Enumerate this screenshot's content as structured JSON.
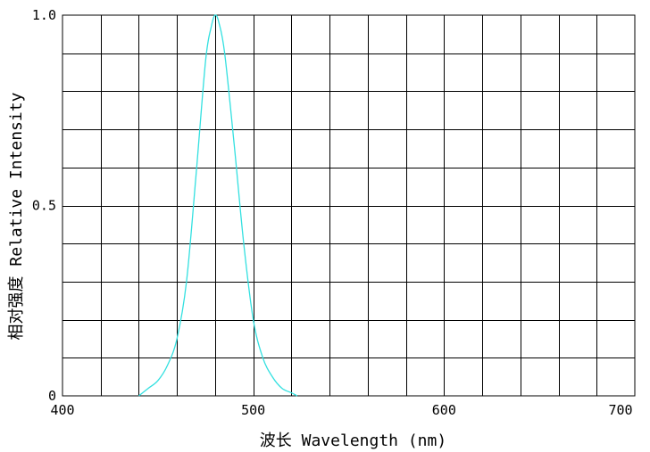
{
  "chart_data": {
    "type": "line",
    "xlabel": "波长  Wavelength (nm)",
    "ylabel": "相对强度  Relative Intensity",
    "xlim": [
      400,
      700
    ],
    "ylim": [
      0,
      1.0
    ],
    "x_ticks": [
      "400",
      "500",
      "600",
      "700"
    ],
    "y_ticks": [
      "0",
      "0.5",
      "1.0"
    ],
    "grid": true,
    "series": [
      {
        "color": "#33e0e0",
        "x": [
          440,
          445,
          450,
          455,
          460,
          465,
          470,
          475,
          478,
          480,
          482,
          485,
          490,
          495,
          500,
          505,
          510,
          515,
          520,
          523
        ],
        "y": [
          0.0,
          0.02,
          0.04,
          0.08,
          0.15,
          0.3,
          0.58,
          0.88,
          0.97,
          1.0,
          0.98,
          0.9,
          0.66,
          0.4,
          0.2,
          0.1,
          0.05,
          0.02,
          0.008,
          0.0
        ]
      }
    ]
  }
}
